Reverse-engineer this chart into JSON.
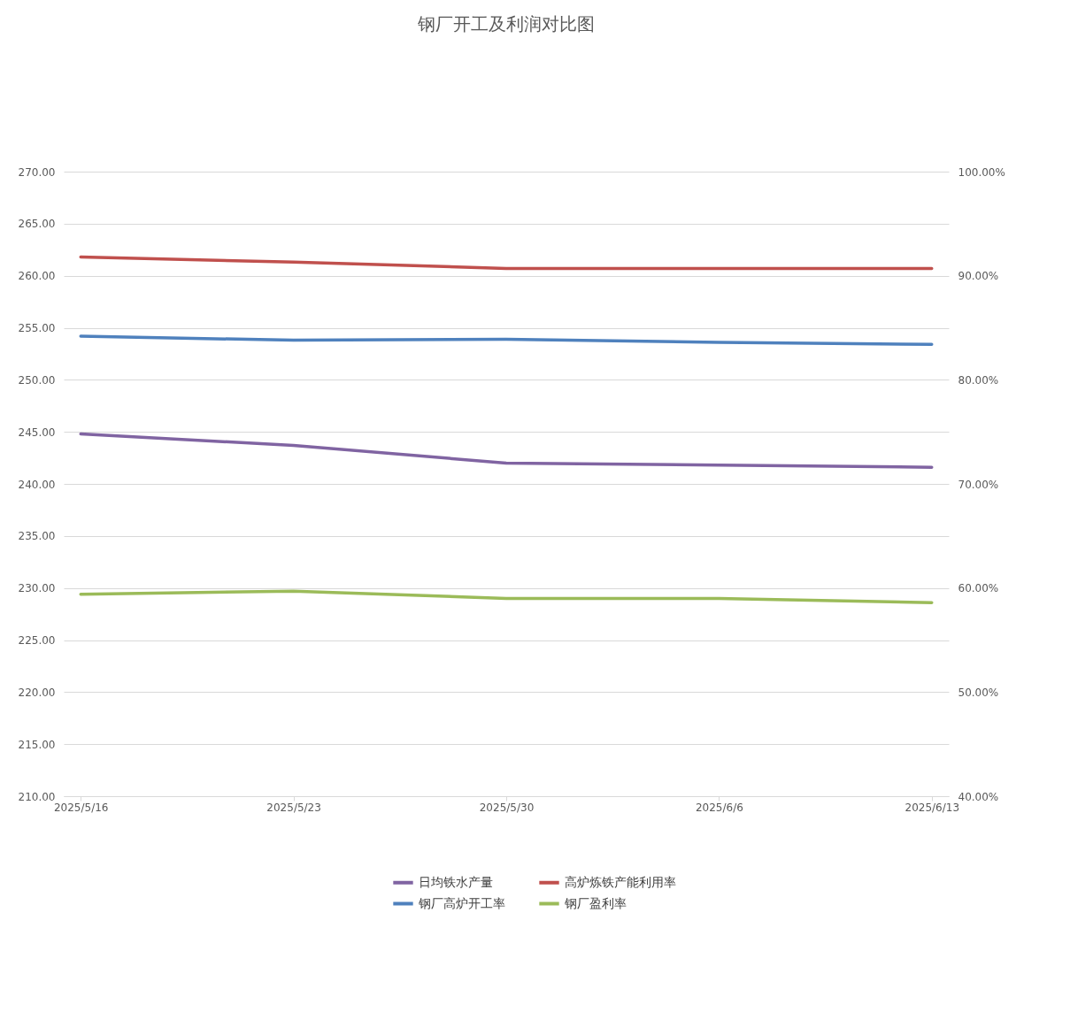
{
  "chart_data": {
    "type": "line",
    "title": "钢厂开工及利润对比图",
    "categories": [
      "2025/5/16",
      "2025/5/23",
      "2025/5/30",
      "2025/6/6",
      "2025/6/13"
    ],
    "series": [
      {
        "name": "日均铁水产量",
        "color": "#8064a2",
        "values": [
          244.8,
          243.7,
          242.0,
          241.8,
          241.6
        ]
      },
      {
        "name": "钢厂高炉开工率",
        "color": "#4f81bd",
        "axis": "y2",
        "values": [
          84.2,
          83.8,
          83.9,
          83.6,
          83.4
        ]
      },
      {
        "name": "高炉炼铁产能利用率",
        "color": "#c0504d",
        "axis": "y2",
        "values": [
          91.8,
          91.3,
          90.7,
          90.7,
          90.7
        ]
      },
      {
        "name": "钢厂盈利率",
        "color": "#9bbb59",
        "axis": "y2",
        "values": [
          59.4,
          59.7,
          59.0,
          59.0,
          58.6
        ]
      }
    ],
    "ylim": [
      210,
      270
    ],
    "yticks": [
      {
        "value": 210,
        "label": "210.00"
      },
      {
        "value": 215,
        "label": "215.00"
      },
      {
        "value": 220,
        "label": "220.00"
      },
      {
        "value": 225,
        "label": "225.00"
      },
      {
        "value": 230,
        "label": "230.00"
      },
      {
        "value": 235,
        "label": "235.00"
      },
      {
        "value": 240,
        "label": "240.00"
      },
      {
        "value": 245,
        "label": "245.00"
      },
      {
        "value": 250,
        "label": "250.00"
      },
      {
        "value": 255,
        "label": "255.00"
      },
      {
        "value": 260,
        "label": "260.00"
      },
      {
        "value": 265,
        "label": "265.00"
      },
      {
        "value": 270,
        "label": "270.00"
      }
    ],
    "y2lim": [
      40,
      100
    ],
    "y2ticks": [
      {
        "value": 40,
        "label": "40.00%"
      },
      {
        "value": 50,
        "label": "50.00%"
      },
      {
        "value": 60,
        "label": "60.00%"
      },
      {
        "value": 70,
        "label": "70.00%"
      },
      {
        "value": 80,
        "label": "80.00%"
      },
      {
        "value": 90,
        "label": "90.00%"
      },
      {
        "value": 100,
        "label": "100.00%"
      }
    ],
    "grid": "y",
    "legend": "bottom",
    "marker": "none",
    "line_style": "solid"
  }
}
